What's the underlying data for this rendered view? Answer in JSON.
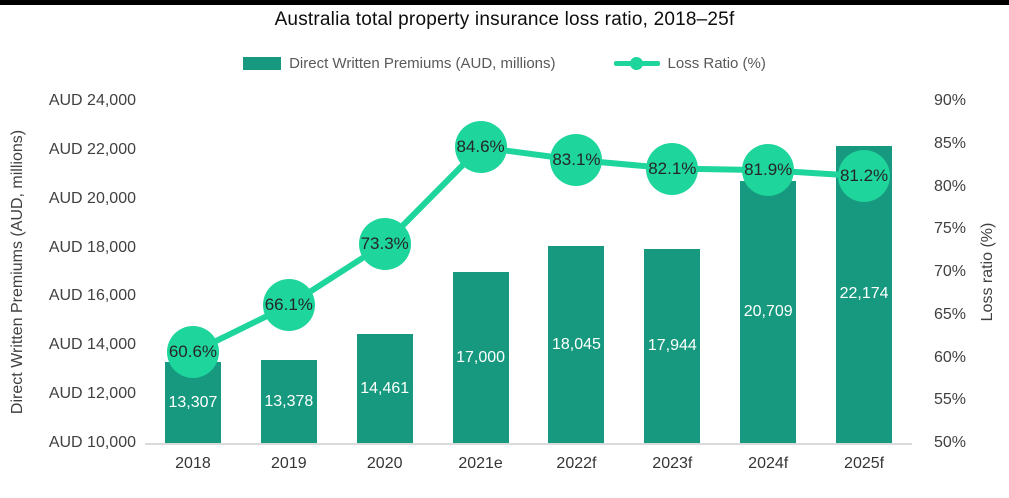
{
  "chart_data": {
    "type": "bar+line combo",
    "title": "Australia total property insurance loss ratio, 2018–25f",
    "categories": [
      "2018",
      "2019",
      "2020",
      "2021e",
      "2022f",
      "2023f",
      "2024f",
      "2025f"
    ],
    "series": [
      {
        "name": "Direct Written Premiums (AUD, millions)",
        "type": "bar",
        "axis": "left",
        "color": "#16997E",
        "values": [
          13307,
          13378,
          14461,
          17000,
          18045,
          17944,
          20709,
          22174
        ],
        "labels": [
          "13,307",
          "13,378",
          "14,461",
          "17,000",
          "18,045",
          "17,944",
          "20,709",
          "22,174"
        ]
      },
      {
        "name": "Loss Ratio (%)",
        "type": "line",
        "axis": "right",
        "color": "#1ED59C",
        "values": [
          60.6,
          66.1,
          73.3,
          84.6,
          83.1,
          82.1,
          81.9,
          81.2
        ],
        "labels": [
          "60.6%",
          "66.1%",
          "73.3%",
          "84.6%",
          "83.1%",
          "82.1%",
          "81.9%",
          "81.2%"
        ]
      }
    ],
    "left_axis": {
      "title": "Direct Written Premiums (AUD, millions)",
      "min": 10000,
      "max": 24000,
      "step": 2000,
      "tick_labels": [
        "AUD 10,000",
        "AUD 12,000",
        "AUD 14,000",
        "AUD 16,000",
        "AUD 18,000",
        "AUD 20,000",
        "AUD 22,000",
        "AUD 24,000"
      ]
    },
    "right_axis": {
      "title": "Loss ratio (%)",
      "min": 50,
      "max": 90,
      "step": 5,
      "tick_labels": [
        "50%",
        "55%",
        "60%",
        "65%",
        "70%",
        "75%",
        "80%",
        "85%",
        "90%"
      ]
    },
    "legend": {
      "position": "top",
      "items": [
        "Direct Written Premiums (AUD, millions)",
        "Loss Ratio (%)"
      ]
    },
    "grid": false
  },
  "colors": {
    "bar": "#16997E",
    "line": "#1ED59C",
    "bar_label_text": "#FFFFFF",
    "marker_label_text": "#262626",
    "axis_text": "#404040",
    "legend_text": "#595959",
    "axis_line": "#D9D9D9",
    "background": "#FFFFFF",
    "top_strip": "#000000"
  }
}
